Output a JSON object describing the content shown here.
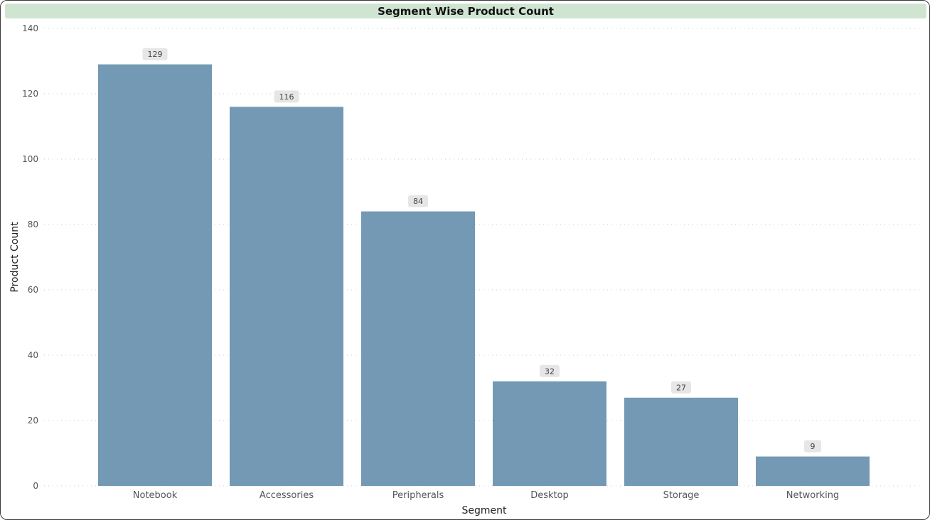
{
  "chart_data": {
    "type": "bar",
    "title": "Segment Wise Product Count",
    "xlabel": "Segment",
    "ylabel": "Product Count",
    "categories": [
      "Notebook",
      "Accessories",
      "Peripherals",
      "Desktop",
      "Storage",
      "Networking"
    ],
    "values": [
      129,
      116,
      84,
      32,
      27,
      9
    ],
    "ylim": [
      0,
      140
    ],
    "yticks": [
      0,
      20,
      40,
      60,
      80,
      100,
      120,
      140
    ],
    "grid": true,
    "legend": "none",
    "data_labels": true
  },
  "colors": {
    "bar": "#7399b4",
    "title_background": "#d0e4d2",
    "gridline": "#c8c8c8",
    "data_label_background": "#e6e6e6"
  }
}
